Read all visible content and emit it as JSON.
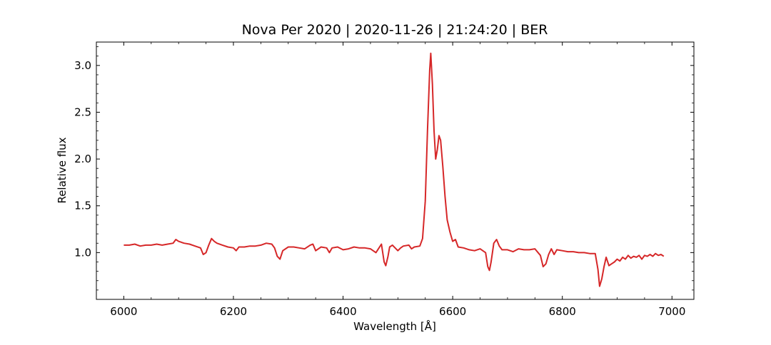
{
  "chart_data": {
    "type": "line",
    "title": "Nova Per 2020 | 2020-11-26 | 21:24:20 | BER",
    "xlabel": "Wavelength [Å]",
    "ylabel": "Relative flux",
    "xlim": [
      5950,
      7040
    ],
    "ylim": [
      0.5,
      3.25
    ],
    "x_ticks": [
      6000,
      6200,
      6400,
      6600,
      6800,
      7000
    ],
    "x_tick_labels": [
      "6000",
      "6200",
      "6400",
      "6600",
      "6800",
      "7000"
    ],
    "y_ticks": [
      1.0,
      1.5,
      2.0,
      2.5,
      3.0
    ],
    "y_tick_labels": [
      "1.0",
      "1.5",
      "2.0",
      "2.5",
      "3.0"
    ],
    "grid": false,
    "series": [
      {
        "color": "#d62728",
        "points": [
          [
            6000,
            1.08
          ],
          [
            6010,
            1.08
          ],
          [
            6020,
            1.09
          ],
          [
            6030,
            1.07
          ],
          [
            6040,
            1.08
          ],
          [
            6050,
            1.08
          ],
          [
            6060,
            1.09
          ],
          [
            6070,
            1.08
          ],
          [
            6080,
            1.09
          ],
          [
            6090,
            1.1
          ],
          [
            6095,
            1.14
          ],
          [
            6100,
            1.12
          ],
          [
            6110,
            1.1
          ],
          [
            6120,
            1.09
          ],
          [
            6130,
            1.07
          ],
          [
            6140,
            1.05
          ],
          [
            6145,
            0.98
          ],
          [
            6150,
            1.0
          ],
          [
            6155,
            1.08
          ],
          [
            6160,
            1.15
          ],
          [
            6165,
            1.12
          ],
          [
            6170,
            1.1
          ],
          [
            6180,
            1.08
          ],
          [
            6190,
            1.06
          ],
          [
            6200,
            1.05
          ],
          [
            6205,
            1.02
          ],
          [
            6210,
            1.06
          ],
          [
            6220,
            1.06
          ],
          [
            6230,
            1.07
          ],
          [
            6240,
            1.07
          ],
          [
            6250,
            1.08
          ],
          [
            6260,
            1.1
          ],
          [
            6270,
            1.09
          ],
          [
            6275,
            1.05
          ],
          [
            6280,
            0.96
          ],
          [
            6285,
            0.93
          ],
          [
            6290,
            1.02
          ],
          [
            6300,
            1.06
          ],
          [
            6310,
            1.06
          ],
          [
            6320,
            1.05
          ],
          [
            6330,
            1.04
          ],
          [
            6340,
            1.08
          ],
          [
            6345,
            1.09
          ],
          [
            6350,
            1.02
          ],
          [
            6360,
            1.06
          ],
          [
            6370,
            1.05
          ],
          [
            6375,
            1.0
          ],
          [
            6380,
            1.05
          ],
          [
            6390,
            1.06
          ],
          [
            6400,
            1.03
          ],
          [
            6410,
            1.04
          ],
          [
            6420,
            1.06
          ],
          [
            6430,
            1.05
          ],
          [
            6440,
            1.05
          ],
          [
            6450,
            1.04
          ],
          [
            6460,
            1.0
          ],
          [
            6470,
            1.09
          ],
          [
            6475,
            0.9
          ],
          [
            6478,
            0.86
          ],
          [
            6482,
            0.96
          ],
          [
            6485,
            1.06
          ],
          [
            6490,
            1.08
          ],
          [
            6495,
            1.05
          ],
          [
            6500,
            1.02
          ],
          [
            6505,
            1.05
          ],
          [
            6510,
            1.07
          ],
          [
            6520,
            1.08
          ],
          [
            6525,
            1.04
          ],
          [
            6530,
            1.06
          ],
          [
            6540,
            1.07
          ],
          [
            6545,
            1.15
          ],
          [
            6550,
            1.55
          ],
          [
            6554,
            2.3
          ],
          [
            6558,
            2.95
          ],
          [
            6560,
            3.13
          ],
          [
            6563,
            2.8
          ],
          [
            6566,
            2.3
          ],
          [
            6569,
            2.0
          ],
          [
            6572,
            2.1
          ],
          [
            6575,
            2.25
          ],
          [
            6578,
            2.2
          ],
          [
            6582,
            1.92
          ],
          [
            6586,
            1.6
          ],
          [
            6590,
            1.35
          ],
          [
            6595,
            1.22
          ],
          [
            6600,
            1.12
          ],
          [
            6605,
            1.14
          ],
          [
            6610,
            1.06
          ],
          [
            6620,
            1.05
          ],
          [
            6630,
            1.03
          ],
          [
            6640,
            1.02
          ],
          [
            6650,
            1.04
          ],
          [
            6660,
            1.0
          ],
          [
            6664,
            0.85
          ],
          [
            6667,
            0.81
          ],
          [
            6670,
            0.9
          ],
          [
            6675,
            1.1
          ],
          [
            6680,
            1.14
          ],
          [
            6685,
            1.07
          ],
          [
            6690,
            1.03
          ],
          [
            6700,
            1.03
          ],
          [
            6710,
            1.01
          ],
          [
            6720,
            1.04
          ],
          [
            6730,
            1.03
          ],
          [
            6740,
            1.03
          ],
          [
            6750,
            1.04
          ],
          [
            6760,
            0.97
          ],
          [
            6765,
            0.85
          ],
          [
            6770,
            0.88
          ],
          [
            6775,
            0.98
          ],
          [
            6780,
            1.04
          ],
          [
            6785,
            0.98
          ],
          [
            6790,
            1.03
          ],
          [
            6800,
            1.02
          ],
          [
            6810,
            1.01
          ],
          [
            6820,
            1.01
          ],
          [
            6830,
            1.0
          ],
          [
            6840,
            1.0
          ],
          [
            6850,
            0.99
          ],
          [
            6860,
            0.99
          ],
          [
            6865,
            0.82
          ],
          [
            6868,
            0.64
          ],
          [
            6872,
            0.72
          ],
          [
            6876,
            0.85
          ],
          [
            6880,
            0.95
          ],
          [
            6885,
            0.86
          ],
          [
            6890,
            0.88
          ],
          [
            6895,
            0.9
          ],
          [
            6900,
            0.93
          ],
          [
            6905,
            0.91
          ],
          [
            6910,
            0.95
          ],
          [
            6915,
            0.93
          ],
          [
            6920,
            0.97
          ],
          [
            6925,
            0.94
          ],
          [
            6930,
            0.96
          ],
          [
            6935,
            0.95
          ],
          [
            6940,
            0.97
          ],
          [
            6945,
            0.93
          ],
          [
            6950,
            0.97
          ],
          [
            6955,
            0.96
          ],
          [
            6960,
            0.98
          ],
          [
            6965,
            0.96
          ],
          [
            6970,
            0.99
          ],
          [
            6975,
            0.97
          ],
          [
            6980,
            0.98
          ],
          [
            6985,
            0.96
          ]
        ]
      }
    ]
  }
}
